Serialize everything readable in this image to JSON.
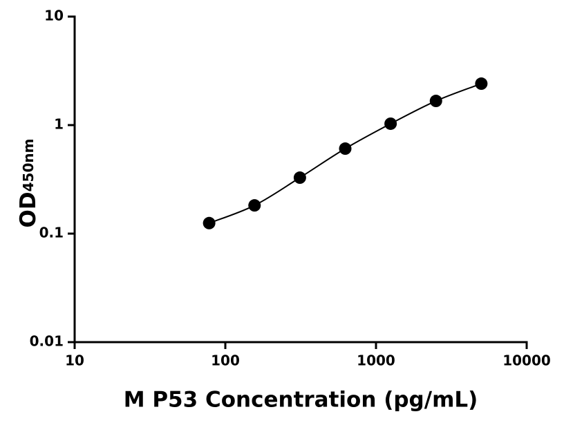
{
  "chart_data": {
    "type": "scatter",
    "x_label": "M P53 Concentration (pg/mL)",
    "y_label": "OD",
    "y_label_subscript": "450nm",
    "x": [
      78.125,
      156.25,
      312.5,
      625,
      1250,
      2500,
      5000
    ],
    "series": [
      {
        "color": "#000000",
        "values": [
          0.125,
          0.182,
          0.328,
          0.607,
          1.03,
          1.67,
          2.41
        ]
      }
    ],
    "x_log": true,
    "y_log": true,
    "xlim": [
      10,
      10000
    ],
    "ylim": [
      0.01,
      10
    ],
    "xticks": [
      10,
      100,
      1000,
      10000
    ],
    "yticks": [
      0.01,
      0.1,
      1,
      10
    ],
    "fit_line": true
  }
}
